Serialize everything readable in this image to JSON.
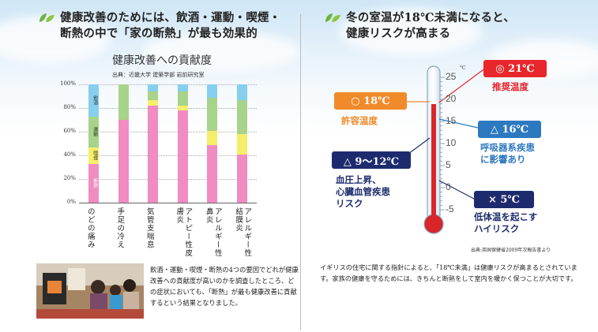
{
  "left": {
    "headline_line1": "健康改善のためには、飲酒・運動・喫煙・",
    "headline_line2": "断熱の中で「家の断熱」が最も効果的",
    "chart_title": "健康改善への貢献度",
    "source": "出典：近畿大学 建築学部 岩前研究室",
    "caption": "飲酒・運動・喫煙・断熱の4つの要因でどれが健康改善への貢献度が高いのかを調査したところ、どの症状においても、「断熱」が最も健康改善に貢献するという結果となりました。"
  },
  "right": {
    "headline_line1": "冬の室温が18℃未満になると、",
    "headline_line2": "健康リスクが高まる",
    "unit": "℃",
    "scale": [
      "25",
      "20",
      "15",
      "10",
      "5",
      "0",
      "-5"
    ],
    "recommended_temp": "◎ 21℃",
    "recommended_label": "推奨温度",
    "acceptable_temp": "○ 18℃",
    "acceptable_label": "許容温度",
    "respiratory_temp": "△ 16℃",
    "respiratory_label_1": "呼吸器系疾患",
    "respiratory_label_2": "に影響あり",
    "bp_temp": "△ 9〜12℃",
    "bp_label_1": "血圧上昇、",
    "bp_label_2": "心臓血管疾患",
    "bp_label_3": "リスク",
    "hypo_temp": "× 5℃",
    "hypo_label_1": "低体温を起こす",
    "hypo_label_2": "ハイリスク",
    "note_source": "出典:英国保健省2009年次報告書より",
    "note": "イギリスの住宅に関する指針によると、「18℃未満」は健康リスクが高まるとされています。家族の健康を守るためには、きちんと断熱をして室内を暖かく保つことが大切です。"
  },
  "chart_data": {
    "type": "bar",
    "stacked": true,
    "categories": [
      "のどの痛み",
      "手足の冷え",
      "気管支喘息",
      "アトピー性皮膚炎",
      "アレルギー性鼻炎",
      "アレルギー性結膜炎"
    ],
    "series": [
      {
        "name": "断熱",
        "color": "#f08cc2",
        "values": [
          33,
          70,
          82,
          78,
          49,
          41
        ]
      },
      {
        "name": "喫煙",
        "color": "#f5ee6a",
        "values": [
          14,
          0,
          5,
          4,
          12,
          17
        ]
      },
      {
        "name": "運動",
        "color": "#a8d38a",
        "values": [
          26,
          30,
          7,
          12,
          28,
          29
        ]
      },
      {
        "name": "飲酒",
        "color": "#86cfee",
        "values": [
          27,
          0,
          6,
          6,
          11,
          13
        ]
      }
    ],
    "yticks": [
      "100%",
      "80%",
      "60%",
      "40%",
      "20%",
      "0%"
    ],
    "ylim": [
      0,
      100
    ]
  },
  "colors": {
    "red": "#e8262b",
    "orange": "#f18a2a",
    "blue": "#2d79c0",
    "navy": "#1d2b6e"
  }
}
